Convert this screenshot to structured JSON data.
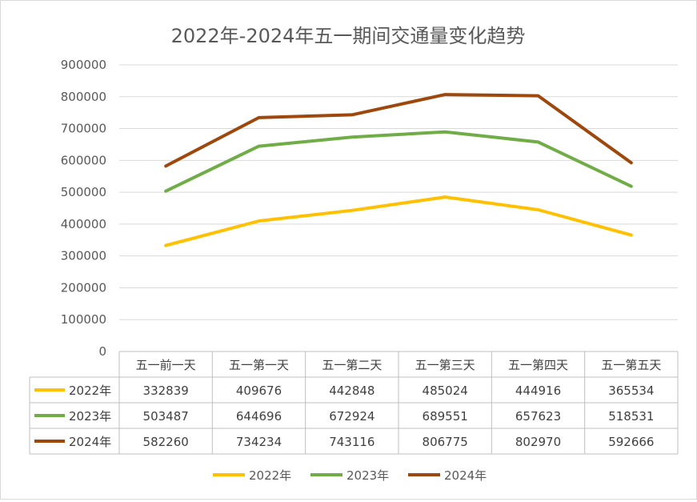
{
  "chart_data": {
    "type": "line",
    "title": "2022年-2024年五一期间交通量变化趋势",
    "categories": [
      "五一前一天",
      "五一第一天",
      "五一第二天",
      "五一第三天",
      "五一第四天",
      "五一第五天"
    ],
    "ylim": [
      0,
      900000
    ],
    "yticks": [
      "900000",
      "800000",
      "700000",
      "600000",
      "500000",
      "400000",
      "300000",
      "200000",
      "100000",
      "0"
    ],
    "grid": true,
    "legend_position": "bottom",
    "data_table": true,
    "series": [
      {
        "name": "2022年",
        "color": "#ffc000",
        "values": [
          332839,
          409676,
          442848,
          485024,
          444916,
          365534
        ],
        "labels": [
          "332839",
          "409676",
          "442848",
          "485024",
          "444916",
          "365534"
        ]
      },
      {
        "name": "2023年",
        "color": "#70ad47",
        "values": [
          503487,
          644696,
          672924,
          689551,
          657623,
          518531
        ],
        "labels": [
          "503487",
          "644696",
          "672924",
          "689551",
          "657623",
          "518531"
        ]
      },
      {
        "name": "2024年",
        "color": "#9e480e",
        "values": [
          582260,
          734234,
          743116,
          806775,
          802970,
          592666
        ],
        "labels": [
          "582260",
          "734234",
          "743116",
          "806775",
          "802970",
          "592666"
        ]
      }
    ]
  }
}
